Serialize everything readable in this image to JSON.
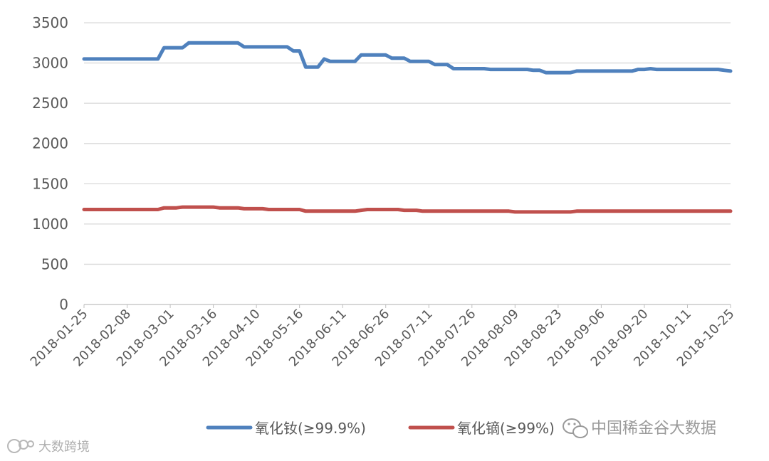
{
  "chart_data": {
    "type": "line",
    "x_tick_labels": [
      "2018-01-25",
      "2018-02-08",
      "2018-03-01",
      "2018-03-16",
      "2018-04-10",
      "2018-05-16",
      "2018-06-11",
      "2018-06-26",
      "2018-07-11",
      "2018-07-26",
      "2018-08-09",
      "2018-08-23",
      "2018-09-06",
      "2018-09-20",
      "2018-10-11",
      "2018-10-25"
    ],
    "ylim": [
      0,
      3500
    ],
    "y_ticks": [
      0,
      500,
      1000,
      1500,
      2000,
      2500,
      3000,
      3500
    ],
    "grid": "horizontal",
    "legend_position": "bottom",
    "series": [
      {
        "name": "氧化钕(≥99.9%)",
        "color": "#4f81bd",
        "values": [
          3050,
          3050,
          3050,
          3050,
          3050,
          3050,
          3050,
          3050,
          3050,
          3050,
          3050,
          3050,
          3050,
          3190,
          3190,
          3190,
          3190,
          3250,
          3250,
          3250,
          3250,
          3250,
          3250,
          3250,
          3250,
          3250,
          3200,
          3200,
          3200,
          3200,
          3200,
          3200,
          3200,
          3200,
          3150,
          3150,
          2950,
          2950,
          2950,
          3050,
          3020,
          3020,
          3020,
          3020,
          3020,
          3100,
          3100,
          3100,
          3100,
          3100,
          3060,
          3060,
          3060,
          3020,
          3020,
          3020,
          3020,
          2980,
          2980,
          2980,
          2930,
          2930,
          2930,
          2930,
          2930,
          2930,
          2920,
          2920,
          2920,
          2920,
          2920,
          2920,
          2920,
          2910,
          2910,
          2880,
          2880,
          2880,
          2880,
          2880,
          2900,
          2900,
          2900,
          2900,
          2900,
          2900,
          2900,
          2900,
          2900,
          2900,
          2920,
          2920,
          2930,
          2920,
          2920,
          2920,
          2920,
          2920,
          2920,
          2920,
          2920,
          2920,
          2920,
          2920,
          2910,
          2900
        ]
      },
      {
        "name": "氧化镝(≥99%)",
        "color": "#c0504d",
        "values": [
          1180,
          1180,
          1180,
          1180,
          1180,
          1180,
          1180,
          1180,
          1180,
          1180,
          1180,
          1180,
          1180,
          1200,
          1200,
          1200,
          1210,
          1210,
          1210,
          1210,
          1210,
          1210,
          1200,
          1200,
          1200,
          1200,
          1190,
          1190,
          1190,
          1190,
          1180,
          1180,
          1180,
          1180,
          1180,
          1180,
          1160,
          1160,
          1160,
          1160,
          1160,
          1160,
          1160,
          1160,
          1160,
          1170,
          1180,
          1180,
          1180,
          1180,
          1180,
          1180,
          1170,
          1170,
          1170,
          1160,
          1160,
          1160,
          1160,
          1160,
          1160,
          1160,
          1160,
          1160,
          1160,
          1160,
          1160,
          1160,
          1160,
          1160,
          1150,
          1150,
          1150,
          1150,
          1150,
          1150,
          1150,
          1150,
          1150,
          1150,
          1160,
          1160,
          1160,
          1160,
          1160,
          1160,
          1160,
          1160,
          1160,
          1160,
          1160,
          1160,
          1160,
          1160,
          1160,
          1160,
          1160,
          1160,
          1160,
          1160,
          1160,
          1160,
          1160,
          1160,
          1160,
          1160
        ]
      }
    ]
  },
  "watermark": {
    "source_text": "中国稀金谷大数据",
    "brand_text": "大数跨境",
    "source_icon": "wechat-icon",
    "brand_icon": "brand-logo-icon"
  }
}
